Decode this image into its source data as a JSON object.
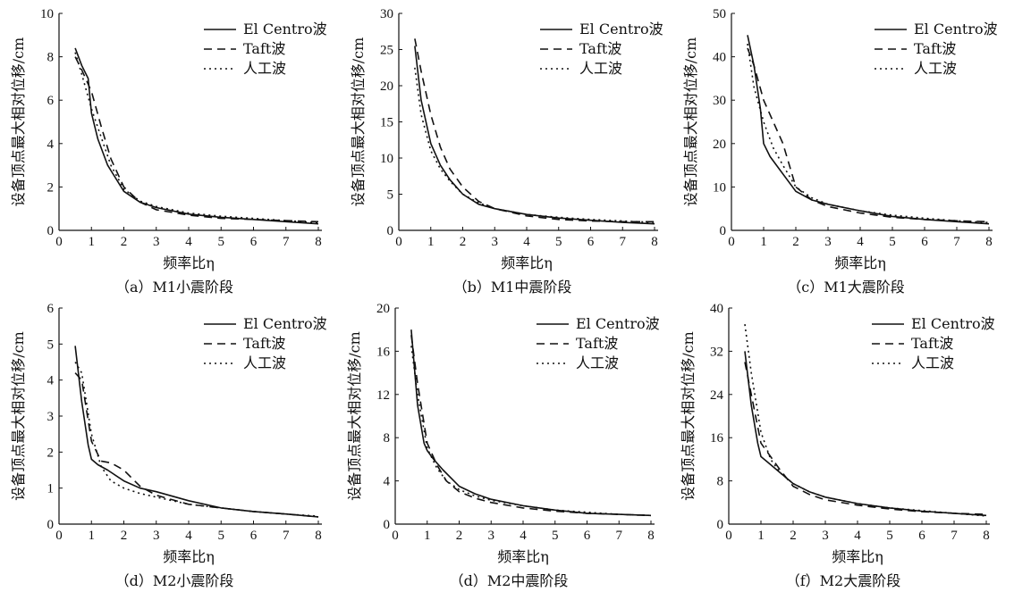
{
  "chart_data": [
    {
      "type": "line",
      "caption": "（a）M1小震阶段",
      "xlabel": "频率比η",
      "ylabel": "设备顶点最大相对位移/cm",
      "xlim": [
        0,
        8
      ],
      "ylim": [
        0,
        10
      ],
      "xticks": [
        "0",
        "1",
        "2",
        "3",
        "4",
        "5",
        "6",
        "7",
        "8"
      ],
      "yticks": [
        "0",
        "2",
        "4",
        "6",
        "8",
        "10"
      ],
      "legend": "top-right",
      "series": [
        {
          "name": "El Centro波",
          "style": "solid",
          "x": [
            0.5,
            0.7,
            0.9,
            1.0,
            1.2,
            1.5,
            2.0,
            2.5,
            3.0,
            4.0,
            5.0,
            6.0,
            7.0,
            8.0
          ],
          "y": [
            8.4,
            7.6,
            7.0,
            5.4,
            4.2,
            3.0,
            1.8,
            1.3,
            1.05,
            0.75,
            0.6,
            0.5,
            0.4,
            0.3
          ]
        },
        {
          "name": "Taft波",
          "style": "dashed",
          "x": [
            0.5,
            0.7,
            1.0,
            1.3,
            1.6,
            2.0,
            2.5,
            3.0,
            4.0,
            5.0,
            6.0,
            7.0,
            8.0
          ],
          "y": [
            8.0,
            7.4,
            6.4,
            4.8,
            3.3,
            2.0,
            1.3,
            0.95,
            0.7,
            0.55,
            0.5,
            0.45,
            0.4
          ]
        },
        {
          "name": "人工波",
          "style": "dotted",
          "x": [
            0.5,
            0.7,
            1.0,
            1.3,
            1.6,
            2.0,
            2.5,
            3.0,
            4.0,
            5.0,
            6.0,
            7.0,
            8.0
          ],
          "y": [
            8.2,
            7.2,
            5.6,
            4.3,
            3.0,
            1.9,
            1.35,
            1.1,
            0.8,
            0.65,
            0.55,
            0.45,
            0.35
          ]
        }
      ]
    },
    {
      "type": "line",
      "caption": "（b）M1中震阶段",
      "xlabel": "频率比η",
      "ylabel": "设备顶点最大相对位移/cm",
      "xlim": [
        0,
        8
      ],
      "ylim": [
        0,
        30
      ],
      "xticks": [
        "0",
        "1",
        "2",
        "3",
        "4",
        "5",
        "6",
        "7",
        "8"
      ],
      "yticks": [
        "0",
        "5",
        "10",
        "15",
        "20",
        "25",
        "30"
      ],
      "legend": "top-right",
      "series": [
        {
          "name": "El Centro波",
          "style": "solid",
          "x": [
            0.5,
            0.7,
            1.0,
            1.3,
            1.6,
            2.0,
            2.5,
            3.0,
            4.0,
            5.0,
            6.0,
            7.0,
            8.0
          ],
          "y": [
            25.5,
            18,
            12,
            9,
            7,
            5,
            3.6,
            3.0,
            2.2,
            1.7,
            1.4,
            1.1,
            0.9
          ]
        },
        {
          "name": "Taft波",
          "style": "dashed",
          "x": [
            0.5,
            0.7,
            1.0,
            1.3,
            1.6,
            2.0,
            2.5,
            3.0,
            4.0,
            5.0,
            6.0,
            7.0,
            8.0
          ],
          "y": [
            26.5,
            22,
            16,
            11.5,
            8.5,
            6,
            4.0,
            3.0,
            2.0,
            1.5,
            1.3,
            1.2,
            1.2
          ]
        },
        {
          "name": "人工波",
          "style": "dotted",
          "x": [
            0.5,
            0.7,
            1.0,
            1.3,
            1.6,
            2.0,
            2.5,
            3.0,
            4.0,
            5.0,
            6.0,
            7.0,
            8.0
          ],
          "y": [
            22.5,
            16,
            11,
            8.5,
            6.8,
            5,
            3.8,
            3.0,
            2.2,
            1.8,
            1.5,
            1.3,
            1.1
          ]
        }
      ]
    },
    {
      "type": "line",
      "caption": "（c）M1大震阶段",
      "xlabel": "频率比η",
      "ylabel": "设备顶点最大相对位移/cm",
      "xlim": [
        0,
        8
      ],
      "ylim": [
        0,
        50
      ],
      "xticks": [
        "0",
        "1",
        "2",
        "3",
        "4",
        "5",
        "6",
        "7",
        "8"
      ],
      "yticks": [
        "0",
        "10",
        "20",
        "30",
        "40",
        "50"
      ],
      "legend": "top-right",
      "series": [
        {
          "name": "El Centro波",
          "style": "solid",
          "x": [
            0.5,
            0.7,
            0.9,
            1.0,
            1.2,
            1.5,
            2.0,
            2.5,
            3.0,
            4.0,
            5.0,
            6.0,
            7.0,
            8.0
          ],
          "y": [
            45,
            38,
            28,
            20,
            17,
            14,
            9,
            7,
            6,
            4.5,
            3.2,
            2.5,
            2.0,
            1.5
          ]
        },
        {
          "name": "Taft波",
          "style": "dashed",
          "x": [
            0.5,
            0.7,
            1.0,
            1.3,
            1.6,
            2.0,
            2.5,
            3.0,
            4.0,
            5.0,
            6.0,
            7.0,
            8.0
          ],
          "y": [
            42,
            38,
            30,
            25,
            20,
            10,
            7,
            5.5,
            4.0,
            3.0,
            2.5,
            2.2,
            2.0
          ]
        },
        {
          "name": "人工波",
          "style": "dotted",
          "x": [
            0.5,
            0.7,
            1.0,
            1.3,
            1.6,
            2.0,
            2.5,
            3.0,
            4.0,
            5.0,
            6.0,
            7.0,
            8.0
          ],
          "y": [
            43,
            33,
            25,
            19,
            15,
            10,
            7.5,
            6,
            4.5,
            3.5,
            2.8,
            2.2,
            1.8
          ]
        }
      ]
    },
    {
      "type": "line",
      "caption": "（d）M2小震阶段",
      "xlabel": "频率比η",
      "ylabel": "设备顶点最大相对位移/cm",
      "xlim": [
        0,
        8
      ],
      "ylim": [
        0,
        6
      ],
      "xticks": [
        "0",
        "1",
        "2",
        "3",
        "4",
        "5",
        "6",
        "7",
        "8"
      ],
      "yticks": [
        "0",
        "1",
        "2",
        "3",
        "4",
        "5",
        "6"
      ],
      "legend": "top-right",
      "series": [
        {
          "name": "El Centro波",
          "style": "solid",
          "x": [
            0.5,
            0.7,
            0.9,
            1.0,
            1.2,
            1.5,
            2.0,
            2.5,
            3.0,
            4.0,
            5.0,
            6.0,
            7.0,
            8.0
          ],
          "y": [
            4.95,
            3.4,
            2.2,
            1.8,
            1.65,
            1.5,
            1.2,
            1.0,
            0.9,
            0.65,
            0.45,
            0.35,
            0.28,
            0.2
          ]
        },
        {
          "name": "Taft波",
          "style": "dashed",
          "x": [
            0.5,
            0.7,
            1.0,
            1.3,
            1.6,
            2.0,
            2.5,
            3.0,
            4.0,
            5.0,
            6.0,
            7.0,
            8.0
          ],
          "y": [
            4.2,
            4.0,
            2.3,
            1.75,
            1.7,
            1.5,
            1.05,
            0.8,
            0.55,
            0.45,
            0.35,
            0.28,
            0.2
          ]
        },
        {
          "name": "人工波",
          "style": "dotted",
          "x": [
            0.5,
            0.7,
            1.0,
            1.3,
            1.6,
            2.0,
            2.5,
            3.0,
            4.0,
            5.0,
            6.0,
            7.0,
            8.0
          ],
          "y": [
            4.5,
            4.2,
            2.5,
            1.6,
            1.2,
            1.0,
            0.85,
            0.75,
            0.55,
            0.45,
            0.35,
            0.28,
            0.22
          ]
        }
      ]
    },
    {
      "type": "line",
      "caption": "（d）M2中震阶段",
      "xlabel": "频率比η",
      "ylabel": "设备顶点最大相对位移/cm",
      "xlim": [
        0,
        8
      ],
      "ylim": [
        0,
        20
      ],
      "xticks": [
        "0",
        "1",
        "2",
        "3",
        "4",
        "5",
        "6",
        "7",
        "8"
      ],
      "yticks": [
        "0",
        "4",
        "8",
        "12",
        "16",
        "20"
      ],
      "legend": "top-right",
      "series": [
        {
          "name": "El Centro波",
          "style": "solid",
          "x": [
            0.5,
            0.7,
            0.9,
            1.0,
            1.2,
            1.5,
            2.0,
            2.5,
            3.0,
            4.0,
            5.0,
            6.0,
            7.0,
            8.0
          ],
          "y": [
            18,
            11,
            7.5,
            6.8,
            6,
            5,
            3.5,
            2.8,
            2.3,
            1.7,
            1.3,
            1.0,
            0.9,
            0.8
          ]
        },
        {
          "name": "Taft波",
          "style": "dashed",
          "x": [
            0.5,
            0.7,
            1.0,
            1.3,
            1.6,
            2.0,
            2.5,
            3.0,
            4.0,
            5.0,
            6.0,
            7.0,
            8.0
          ],
          "y": [
            17.5,
            13,
            7.5,
            5.5,
            4.0,
            3.0,
            2.4,
            2.0,
            1.5,
            1.2,
            1.0,
            0.9,
            0.8
          ]
        },
        {
          "name": "人工波",
          "style": "dotted",
          "x": [
            0.5,
            0.7,
            1.0,
            1.3,
            1.6,
            2.0,
            2.5,
            3.0,
            4.0,
            5.0,
            6.0,
            7.0,
            8.0
          ],
          "y": [
            16.5,
            12,
            7.0,
            5.2,
            4.0,
            3.2,
            2.6,
            2.2,
            1.7,
            1.3,
            1.1,
            0.9,
            0.8
          ]
        }
      ]
    },
    {
      "type": "line",
      "caption": "（f）M2大震阶段",
      "xlabel": "频率比η",
      "ylabel": "设备顶点最大相对位移/cm",
      "xlim": [
        0,
        8
      ],
      "ylim": [
        0,
        40
      ],
      "xticks": [
        "0",
        "1",
        "2",
        "3",
        "4",
        "5",
        "6",
        "7",
        "8"
      ],
      "yticks": [
        "0",
        "8",
        "16",
        "24",
        "32",
        "40"
      ],
      "legend": "top-right",
      "series": [
        {
          "name": "El Centro波",
          "style": "solid",
          "x": [
            0.5,
            0.7,
            0.9,
            1.0,
            1.2,
            1.5,
            2.0,
            2.5,
            3.0,
            4.0,
            5.0,
            6.0,
            7.0,
            8.0
          ],
          "y": [
            32,
            22,
            15,
            12.5,
            11.5,
            10,
            7.5,
            6,
            5,
            3.8,
            3.0,
            2.4,
            2.0,
            1.6
          ]
        },
        {
          "name": "Taft波",
          "style": "dashed",
          "x": [
            0.5,
            0.7,
            1.0,
            1.3,
            1.6,
            2.0,
            2.5,
            3.0,
            4.0,
            5.0,
            6.0,
            7.0,
            8.0
          ],
          "y": [
            30,
            24,
            15,
            12.5,
            10,
            7,
            5.5,
            4.5,
            3.5,
            2.8,
            2.3,
            2.0,
            1.8
          ]
        },
        {
          "name": "人工波",
          "style": "dotted",
          "x": [
            0.5,
            0.7,
            1.0,
            1.3,
            1.6,
            2.0,
            2.5,
            3.0,
            4.0,
            5.0,
            6.0,
            7.0,
            8.0
          ],
          "y": [
            37,
            28,
            17,
            12,
            9.5,
            7.5,
            6,
            5,
            3.8,
            3.0,
            2.5,
            2.0,
            1.5
          ]
        }
      ]
    }
  ]
}
